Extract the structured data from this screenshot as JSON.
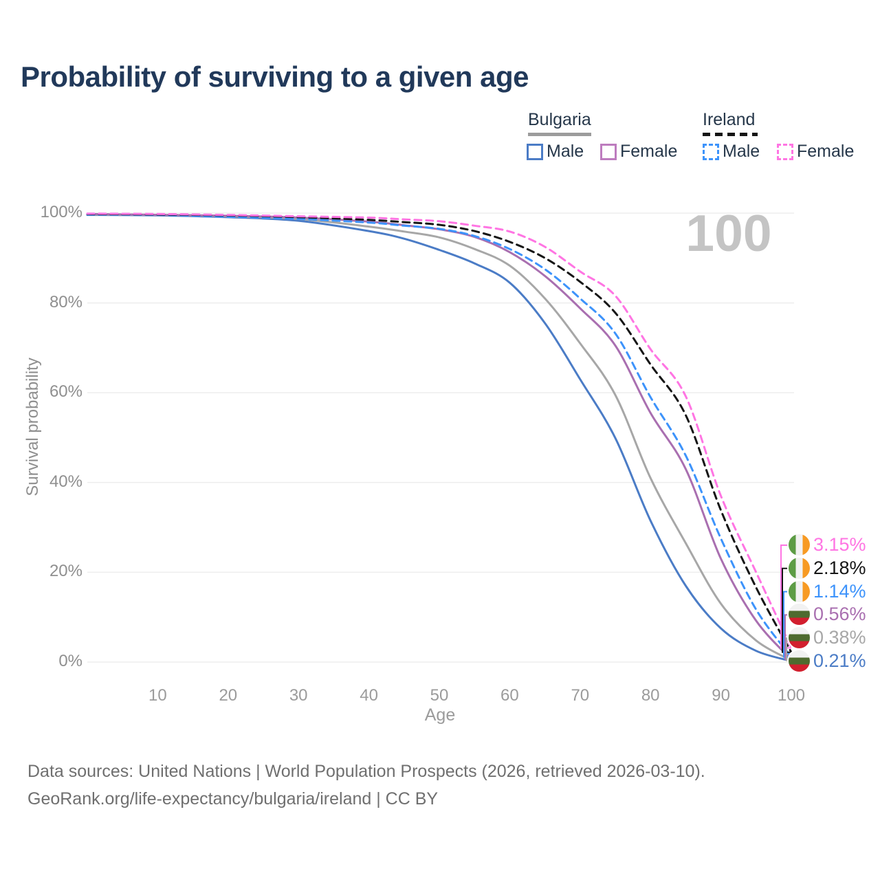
{
  "title": "Probability of surviving to a given age",
  "hover": {
    "age_label": "100"
  },
  "legend": {
    "groups": [
      {
        "country": "Bulgaria",
        "line_style": "solid",
        "line_color": "#9c9c9c",
        "items": [
          {
            "label": "Male",
            "color": "#4b7cc6",
            "style": "solid"
          },
          {
            "label": "Female",
            "color": "#bd7cbe",
            "style": "solid"
          }
        ]
      },
      {
        "country": "Ireland",
        "line_style": "dashed",
        "line_color": "#151515",
        "items": [
          {
            "label": "Male",
            "color": "#3d93fb",
            "style": "dashed"
          },
          {
            "label": "Female",
            "color": "#ff75e3",
            "style": "dashed"
          }
        ]
      }
    ]
  },
  "chart_data": {
    "type": "line",
    "title": "Probability of surviving to a given age",
    "xlabel": "Age",
    "ylabel": "Survival probability",
    "xlim": [
      0,
      100
    ],
    "ylim": [
      0,
      100
    ],
    "grid": "horizontal",
    "x_ticks": [
      10,
      20,
      30,
      40,
      50,
      60,
      70,
      80,
      90,
      100
    ],
    "y_ticks": [
      0,
      20,
      40,
      60,
      80,
      100
    ],
    "y_tick_suffix": "%",
    "legend_position": "top-right",
    "x": [
      0,
      10,
      20,
      30,
      40,
      45,
      50,
      55,
      60,
      65,
      70,
      75,
      80,
      85,
      90,
      95,
      100
    ],
    "series": [
      {
        "name": "Bulgaria Male",
        "country": "Bulgaria",
        "sex": "Male",
        "style": "solid",
        "color": "#4b7cc6",
        "flag": "bulgaria",
        "end_label": "0.21%",
        "values": [
          99.6,
          99.5,
          99.1,
          98.3,
          96.0,
          94.3,
          91.8,
          88.8,
          84.5,
          75.5,
          63.0,
          49.9,
          31.5,
          17.0,
          7.5,
          2.5,
          0.21
        ]
      },
      {
        "name": "Bulgaria Both sexes",
        "country": "Bulgaria",
        "sex": "Both",
        "style": "solid",
        "color": "#a7a7a7",
        "flag": "bulgaria",
        "end_label": "0.38%",
        "values": [
          99.7,
          99.6,
          99.3,
          98.7,
          97.0,
          95.9,
          94.6,
          92.0,
          88.3,
          81.0,
          71.0,
          59.5,
          41.0,
          26.5,
          13.0,
          4.8,
          0.38
        ]
      },
      {
        "name": "Bulgaria Female",
        "country": "Bulgaria",
        "sex": "Female",
        "style": "solid",
        "color": "#a96fb0",
        "flag": "bulgaria",
        "end_label": "0.56%",
        "values": [
          99.8,
          99.6,
          99.4,
          99.0,
          98.1,
          97.3,
          96.4,
          94.7,
          91.3,
          86.0,
          78.8,
          70.5,
          55.5,
          43.0,
          23.0,
          9.2,
          0.56
        ]
      },
      {
        "name": "Ireland Male",
        "country": "Ireland",
        "sex": "Male",
        "style": "dashed",
        "color": "#3d93fb",
        "flag": "ireland",
        "end_label": "1.14%",
        "values": [
          99.7,
          99.6,
          99.2,
          98.7,
          97.9,
          97.2,
          96.5,
          94.9,
          92.0,
          87.5,
          81.0,
          73.2,
          59.0,
          46.0,
          27.5,
          11.7,
          1.14
        ]
      },
      {
        "name": "Ireland Both sexes",
        "country": "Ireland",
        "sex": "Both",
        "style": "dashed",
        "color": "#161616",
        "flag": "ireland",
        "end_label": "2.18%",
        "values": [
          99.8,
          99.7,
          99.5,
          99.1,
          98.5,
          98.0,
          97.4,
          96.0,
          93.6,
          90.0,
          84.7,
          77.8,
          66.3,
          55.0,
          33.8,
          16.6,
          2.18
        ]
      },
      {
        "name": "Ireland Female",
        "country": "Ireland",
        "sex": "Female",
        "style": "dashed",
        "color": "#ff75e3",
        "flag": "ireland",
        "end_label": "3.15%",
        "values": [
          99.9,
          99.8,
          99.6,
          99.3,
          99.0,
          98.6,
          98.2,
          97.2,
          95.9,
          92.5,
          87.0,
          81.6,
          69.7,
          59.2,
          37.0,
          20.0,
          3.15
        ]
      }
    ]
  },
  "footer": {
    "line1": "Data sources: United Nations | World Population Prospects (2026, retrieved 2026-03-10).",
    "line2": "GeoRank.org/life-expectancy/bulgaria/ireland | CC BY"
  }
}
